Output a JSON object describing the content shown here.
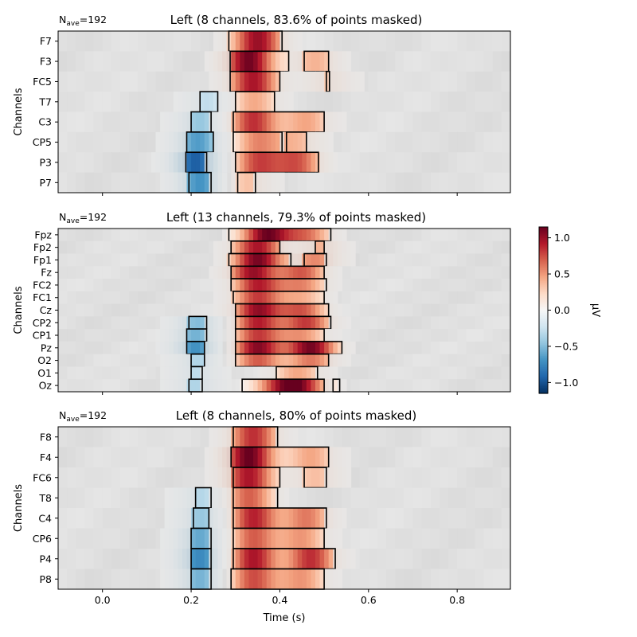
{
  "chart_data": [
    {
      "type": "heatmap",
      "nave_label": "N",
      "nave_sub": "ave",
      "nave_value": "=192",
      "title": "Left (8 channels, 83.6% of points masked)",
      "ylabel": "Channels",
      "xlabel": "",
      "xlim": [
        -0.1,
        0.92
      ],
      "xticks": [
        0.0,
        0.2,
        0.4,
        0.6,
        0.8
      ],
      "show_xtick_labels": false,
      "channels": [
        "F7",
        "F3",
        "FC5",
        "T7",
        "C3",
        "CP5",
        "P3",
        "P7"
      ],
      "pos_segments": [
        [
          [
            0.285,
            0.405
          ]
        ],
        [
          [
            0.288,
            0.42
          ],
          [
            0.455,
            0.51
          ]
        ],
        [
          [
            0.288,
            0.4
          ],
          [
            0.505,
            0.512
          ]
        ],
        [
          [
            0.3,
            0.388
          ]
        ],
        [
          [
            0.295,
            0.5
          ]
        ],
        [
          [
            0.295,
            0.405
          ],
          [
            0.415,
            0.46
          ]
        ],
        [
          [
            0.3,
            0.487
          ]
        ],
        [
          [
            0.305,
            0.345
          ]
        ]
      ],
      "pos_peaks": [
        [
          {
            "t": 0.35,
            "v": 1.0
          }
        ],
        [
          {
            "t": 0.33,
            "v": 1.12
          },
          {
            "t": 0.48,
            "v": 0.4
          }
        ],
        [
          {
            "t": 0.34,
            "v": 0.95
          },
          {
            "t": 0.508,
            "v": 0.3
          }
        ],
        [
          {
            "t": 0.34,
            "v": 0.45
          }
        ],
        [
          {
            "t": 0.34,
            "v": 0.85
          },
          {
            "t": 0.46,
            "v": 0.45
          }
        ],
        [
          {
            "t": 0.35,
            "v": 0.55
          },
          {
            "t": 0.44,
            "v": 0.35
          }
        ],
        [
          {
            "t": 0.35,
            "v": 0.75
          },
          {
            "t": 0.44,
            "v": 0.7
          }
        ],
        [
          {
            "t": 0.325,
            "v": 0.35
          }
        ]
      ],
      "neg_segments": [
        [],
        [],
        [],
        [
          [
            0.22,
            0.26
          ]
        ],
        [
          [
            0.2,
            0.245
          ]
        ],
        [
          [
            0.19,
            0.25
          ]
        ],
        [
          [
            0.188,
            0.235
          ]
        ],
        [
          [
            0.195,
            0.245
          ]
        ]
      ],
      "neg_peaks": [
        [],
        [],
        [],
        [
          {
            "t": 0.24,
            "v": -0.3
          }
        ],
        [
          {
            "t": 0.22,
            "v": -0.45
          }
        ],
        [
          {
            "t": 0.215,
            "v": -0.65
          }
        ],
        [
          {
            "t": 0.21,
            "v": -0.95
          }
        ],
        [
          {
            "t": 0.22,
            "v": -0.7
          }
        ]
      ]
    },
    {
      "type": "heatmap",
      "nave_label": "N",
      "nave_sub": "ave",
      "nave_value": "=192",
      "title": "Left (13 channels, 79.3% of points masked)",
      "ylabel": "Channels",
      "xlabel": "",
      "xlim": [
        -0.1,
        0.92
      ],
      "xticks": [
        0.0,
        0.2,
        0.4,
        0.6,
        0.8
      ],
      "show_xtick_labels": false,
      "channels": [
        "Fpz",
        "Fp2",
        "Fp1",
        "Fz",
        "FC2",
        "FC1",
        "Cz",
        "CP2",
        "CP1",
        "Pz",
        "O2",
        "O1",
        "Oz"
      ],
      "pos_segments": [
        [
          [
            0.285,
            0.515
          ]
        ],
        [
          [
            0.29,
            0.4
          ],
          [
            0.48,
            0.5
          ]
        ],
        [
          [
            0.285,
            0.425
          ],
          [
            0.455,
            0.505
          ]
        ],
        [
          [
            0.29,
            0.5
          ]
        ],
        [
          [
            0.29,
            0.505
          ]
        ],
        [
          [
            0.295,
            0.5
          ]
        ],
        [
          [
            0.3,
            0.51
          ]
        ],
        [
          [
            0.3,
            0.515
          ]
        ],
        [
          [
            0.3,
            0.5
          ]
        ],
        [
          [
            0.3,
            0.54
          ]
        ],
        [
          [
            0.3,
            0.51
          ]
        ],
        [
          [
            0.392,
            0.485
          ]
        ],
        [
          [
            0.315,
            0.5
          ],
          [
            0.52,
            0.535
          ]
        ]
      ],
      "pos_peaks": [
        [
          {
            "t": 0.37,
            "v": 1.1
          },
          {
            "t": 0.46,
            "v": 0.6
          }
        ],
        [
          {
            "t": 0.35,
            "v": 0.95
          },
          {
            "t": 0.49,
            "v": 0.4
          }
        ],
        [
          {
            "t": 0.35,
            "v": 1.1
          },
          {
            "t": 0.48,
            "v": 0.55
          }
        ],
        [
          {
            "t": 0.34,
            "v": 1.0
          },
          {
            "t": 0.45,
            "v": 0.7
          }
        ],
        [
          {
            "t": 0.35,
            "v": 0.9
          },
          {
            "t": 0.45,
            "v": 0.55
          }
        ],
        [
          {
            "t": 0.35,
            "v": 0.8
          },
          {
            "t": 0.45,
            "v": 0.4
          }
        ],
        [
          {
            "t": 0.35,
            "v": 1.0
          },
          {
            "t": 0.45,
            "v": 0.7
          }
        ],
        [
          {
            "t": 0.35,
            "v": 0.9
          },
          {
            "t": 0.46,
            "v": 0.8
          }
        ],
        [
          {
            "t": 0.35,
            "v": 0.8
          },
          {
            "t": 0.45,
            "v": 0.5
          }
        ],
        [
          {
            "t": 0.35,
            "v": 1.05
          },
          {
            "t": 0.47,
            "v": 1.1
          }
        ],
        [
          {
            "t": 0.35,
            "v": 0.7
          },
          {
            "t": 0.47,
            "v": 0.6
          }
        ],
        [
          {
            "t": 0.44,
            "v": 0.45
          }
        ],
        [
          {
            "t": 0.4,
            "v": 0.7
          },
          {
            "t": 0.45,
            "v": 0.8
          }
        ]
      ],
      "neg_segments": [
        [],
        [],
        [],
        [],
        [],
        [],
        [],
        [
          [
            0.195,
            0.235
          ]
        ],
        [
          [
            0.19,
            0.235
          ]
        ],
        [
          [
            0.19,
            0.23
          ]
        ],
        [
          [
            0.2,
            0.23
          ]
        ],
        [
          [
            0.2,
            0.225
          ]
        ],
        [
          [
            0.195,
            0.225
          ]
        ]
      ],
      "neg_peaks": [
        [],
        [],
        [],
        [],
        [],
        [],
        [],
        [
          {
            "t": 0.215,
            "v": -0.5
          }
        ],
        [
          {
            "t": 0.21,
            "v": -0.55
          }
        ],
        [
          {
            "t": 0.21,
            "v": -0.7
          }
        ],
        [
          {
            "t": 0.215,
            "v": -0.35
          }
        ],
        [
          {
            "t": 0.21,
            "v": -0.3
          }
        ],
        [
          {
            "t": 0.21,
            "v": -0.35
          }
        ]
      ]
    },
    {
      "type": "heatmap",
      "nave_label": "N",
      "nave_sub": "ave",
      "nave_value": "=192",
      "title": "Left (8 channels, 80% of points masked)",
      "ylabel": "Channels",
      "xlabel": "Time (s)",
      "xlim": [
        -0.1,
        0.92
      ],
      "xticks": [
        0.0,
        0.2,
        0.4,
        0.6,
        0.8
      ],
      "xtick_labels": [
        "0.0",
        "0.2",
        "0.4",
        "0.6",
        "0.8"
      ],
      "show_xtick_labels": true,
      "channels": [
        "F8",
        "F4",
        "FC6",
        "T8",
        "C4",
        "CP6",
        "P4",
        "P8"
      ],
      "pos_segments": [
        [
          [
            0.295,
            0.395
          ]
        ],
        [
          [
            0.29,
            0.51
          ]
        ],
        [
          [
            0.295,
            0.4
          ],
          [
            0.455,
            0.505
          ]
        ],
        [
          [
            0.295,
            0.395
          ]
        ],
        [
          [
            0.295,
            0.505
          ]
        ],
        [
          [
            0.295,
            0.5
          ]
        ],
        [
          [
            0.295,
            0.525
          ]
        ],
        [
          [
            0.29,
            0.5
          ]
        ]
      ],
      "pos_peaks": [
        [
          {
            "t": 0.34,
            "v": 0.85
          }
        ],
        [
          {
            "t": 0.33,
            "v": 1.15
          },
          {
            "t": 0.47,
            "v": 0.45
          }
        ],
        [
          {
            "t": 0.33,
            "v": 0.95
          },
          {
            "t": 0.48,
            "v": 0.35
          }
        ],
        [
          {
            "t": 0.33,
            "v": 0.7
          }
        ],
        [
          {
            "t": 0.34,
            "v": 0.9
          },
          {
            "t": 0.46,
            "v": 0.6
          }
        ],
        [
          {
            "t": 0.34,
            "v": 0.7
          },
          {
            "t": 0.45,
            "v": 0.5
          }
        ],
        [
          {
            "t": 0.34,
            "v": 0.95
          },
          {
            "t": 0.47,
            "v": 0.85
          }
        ],
        [
          {
            "t": 0.34,
            "v": 0.75
          },
          {
            "t": 0.45,
            "v": 0.5
          }
        ]
      ],
      "neg_segments": [
        [],
        [],
        [],
        [
          [
            0.21,
            0.245
          ]
        ],
        [
          [
            0.205,
            0.24
          ]
        ],
        [
          [
            0.2,
            0.245
          ]
        ],
        [
          [
            0.2,
            0.245
          ]
        ],
        [
          [
            0.2,
            0.245
          ]
        ]
      ],
      "neg_peaks": [
        [],
        [],
        [],
        [
          {
            "t": 0.225,
            "v": -0.35
          }
        ],
        [
          {
            "t": 0.225,
            "v": -0.45
          }
        ],
        [
          {
            "t": 0.22,
            "v": -0.6
          }
        ],
        [
          {
            "t": 0.22,
            "v": -0.75
          }
        ],
        [
          {
            "t": 0.22,
            "v": -0.55
          }
        ]
      ]
    }
  ],
  "colorbar": {
    "label": "µV",
    "vmin": -1.15,
    "vmax": 1.15,
    "ticks": [
      1.0,
      0.5,
      0.0,
      -0.5,
      -1.0
    ],
    "tick_labels": [
      "1.0",
      "0.5",
      "0.0",
      "−0.5",
      "−1.0"
    ],
    "colormap": "RdBu_r"
  }
}
